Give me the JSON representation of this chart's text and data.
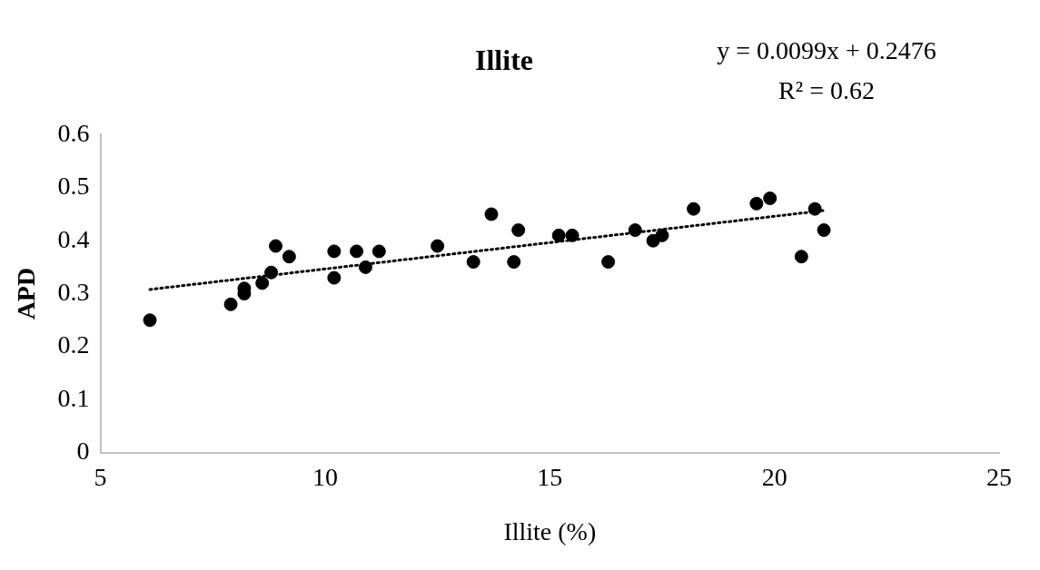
{
  "chart_data": {
    "type": "scatter",
    "title": "Illite",
    "xlabel": "Illite (%)",
    "ylabel": "APD",
    "annotations": [
      "y = 0.0099x + 0.2476",
      "R² = 0.62"
    ],
    "series": [
      {
        "color": "#000000",
        "marker": "circle",
        "x": [
          6.1,
          7.9,
          8.2,
          8.2,
          8.6,
          8.8,
          8.9,
          9.2,
          10.2,
          10.2,
          10.7,
          10.9,
          11.2,
          12.5,
          13.3,
          13.7,
          14.2,
          14.3,
          15.2,
          15.5,
          16.3,
          16.9,
          17.3,
          17.5,
          18.2,
          19.6,
          19.9,
          20.6,
          20.9,
          21.1
        ],
        "values": [
          0.25,
          0.28,
          0.31,
          0.3,
          0.32,
          0.34,
          0.39,
          0.37,
          0.38,
          0.33,
          0.38,
          0.35,
          0.38,
          0.39,
          0.36,
          0.45,
          0.36,
          0.42,
          0.41,
          0.41,
          0.36,
          0.42,
          0.4,
          0.41,
          0.46,
          0.47,
          0.48,
          0.37,
          0.46,
          0.42
        ]
      },
      {
        "type": "line",
        "color": "#000000",
        "line_style": "dotted",
        "marker": "none",
        "x": [
          6.1,
          21.1
        ],
        "values": [
          0.308,
          0.457
        ]
      }
    ],
    "xlim": [
      5,
      25
    ],
    "xticks": [
      5,
      10,
      15,
      20,
      25
    ],
    "ylim": [
      0,
      0.6
    ],
    "yticks": [
      0,
      0.1,
      0.2,
      0.3,
      0.4,
      0.5,
      0.6
    ],
    "grid": false,
    "legend": false
  }
}
